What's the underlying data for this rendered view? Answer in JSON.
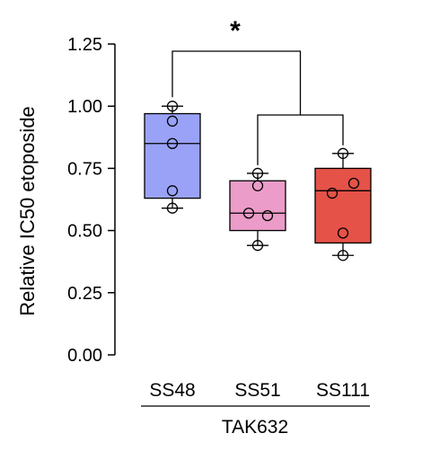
{
  "chart_data": {
    "type": "box",
    "ylabel": "Relative IC50 etoposide",
    "ylim": [
      0,
      1.25
    ],
    "yticks": [
      "0.00",
      "0.25",
      "0.50",
      "0.75",
      "1.00",
      "1.25"
    ],
    "categories": [
      "SS48",
      "SS51",
      "SS111"
    ],
    "group_label": "TAK632",
    "significance": "*",
    "colors": [
      "#9aa2f7",
      "#ec9cc8",
      "#e55248"
    ],
    "boxes": [
      {
        "name": "SS48",
        "min": 0.59,
        "q1": 0.63,
        "median": 0.85,
        "q3": 0.97,
        "max": 1.0,
        "points": [
          1.0,
          0.94,
          0.85,
          0.66,
          0.59
        ]
      },
      {
        "name": "SS51",
        "min": 0.44,
        "q1": 0.5,
        "median": 0.57,
        "q3": 0.7,
        "max": 0.73,
        "points": [
          0.73,
          0.57,
          0.56,
          0.44,
          0.68
        ]
      },
      {
        "name": "SS111",
        "min": 0.4,
        "q1": 0.45,
        "median": 0.66,
        "q3": 0.75,
        "max": 0.81,
        "points": [
          0.81,
          0.69,
          0.65,
          0.49,
          0.4
        ]
      }
    ]
  }
}
